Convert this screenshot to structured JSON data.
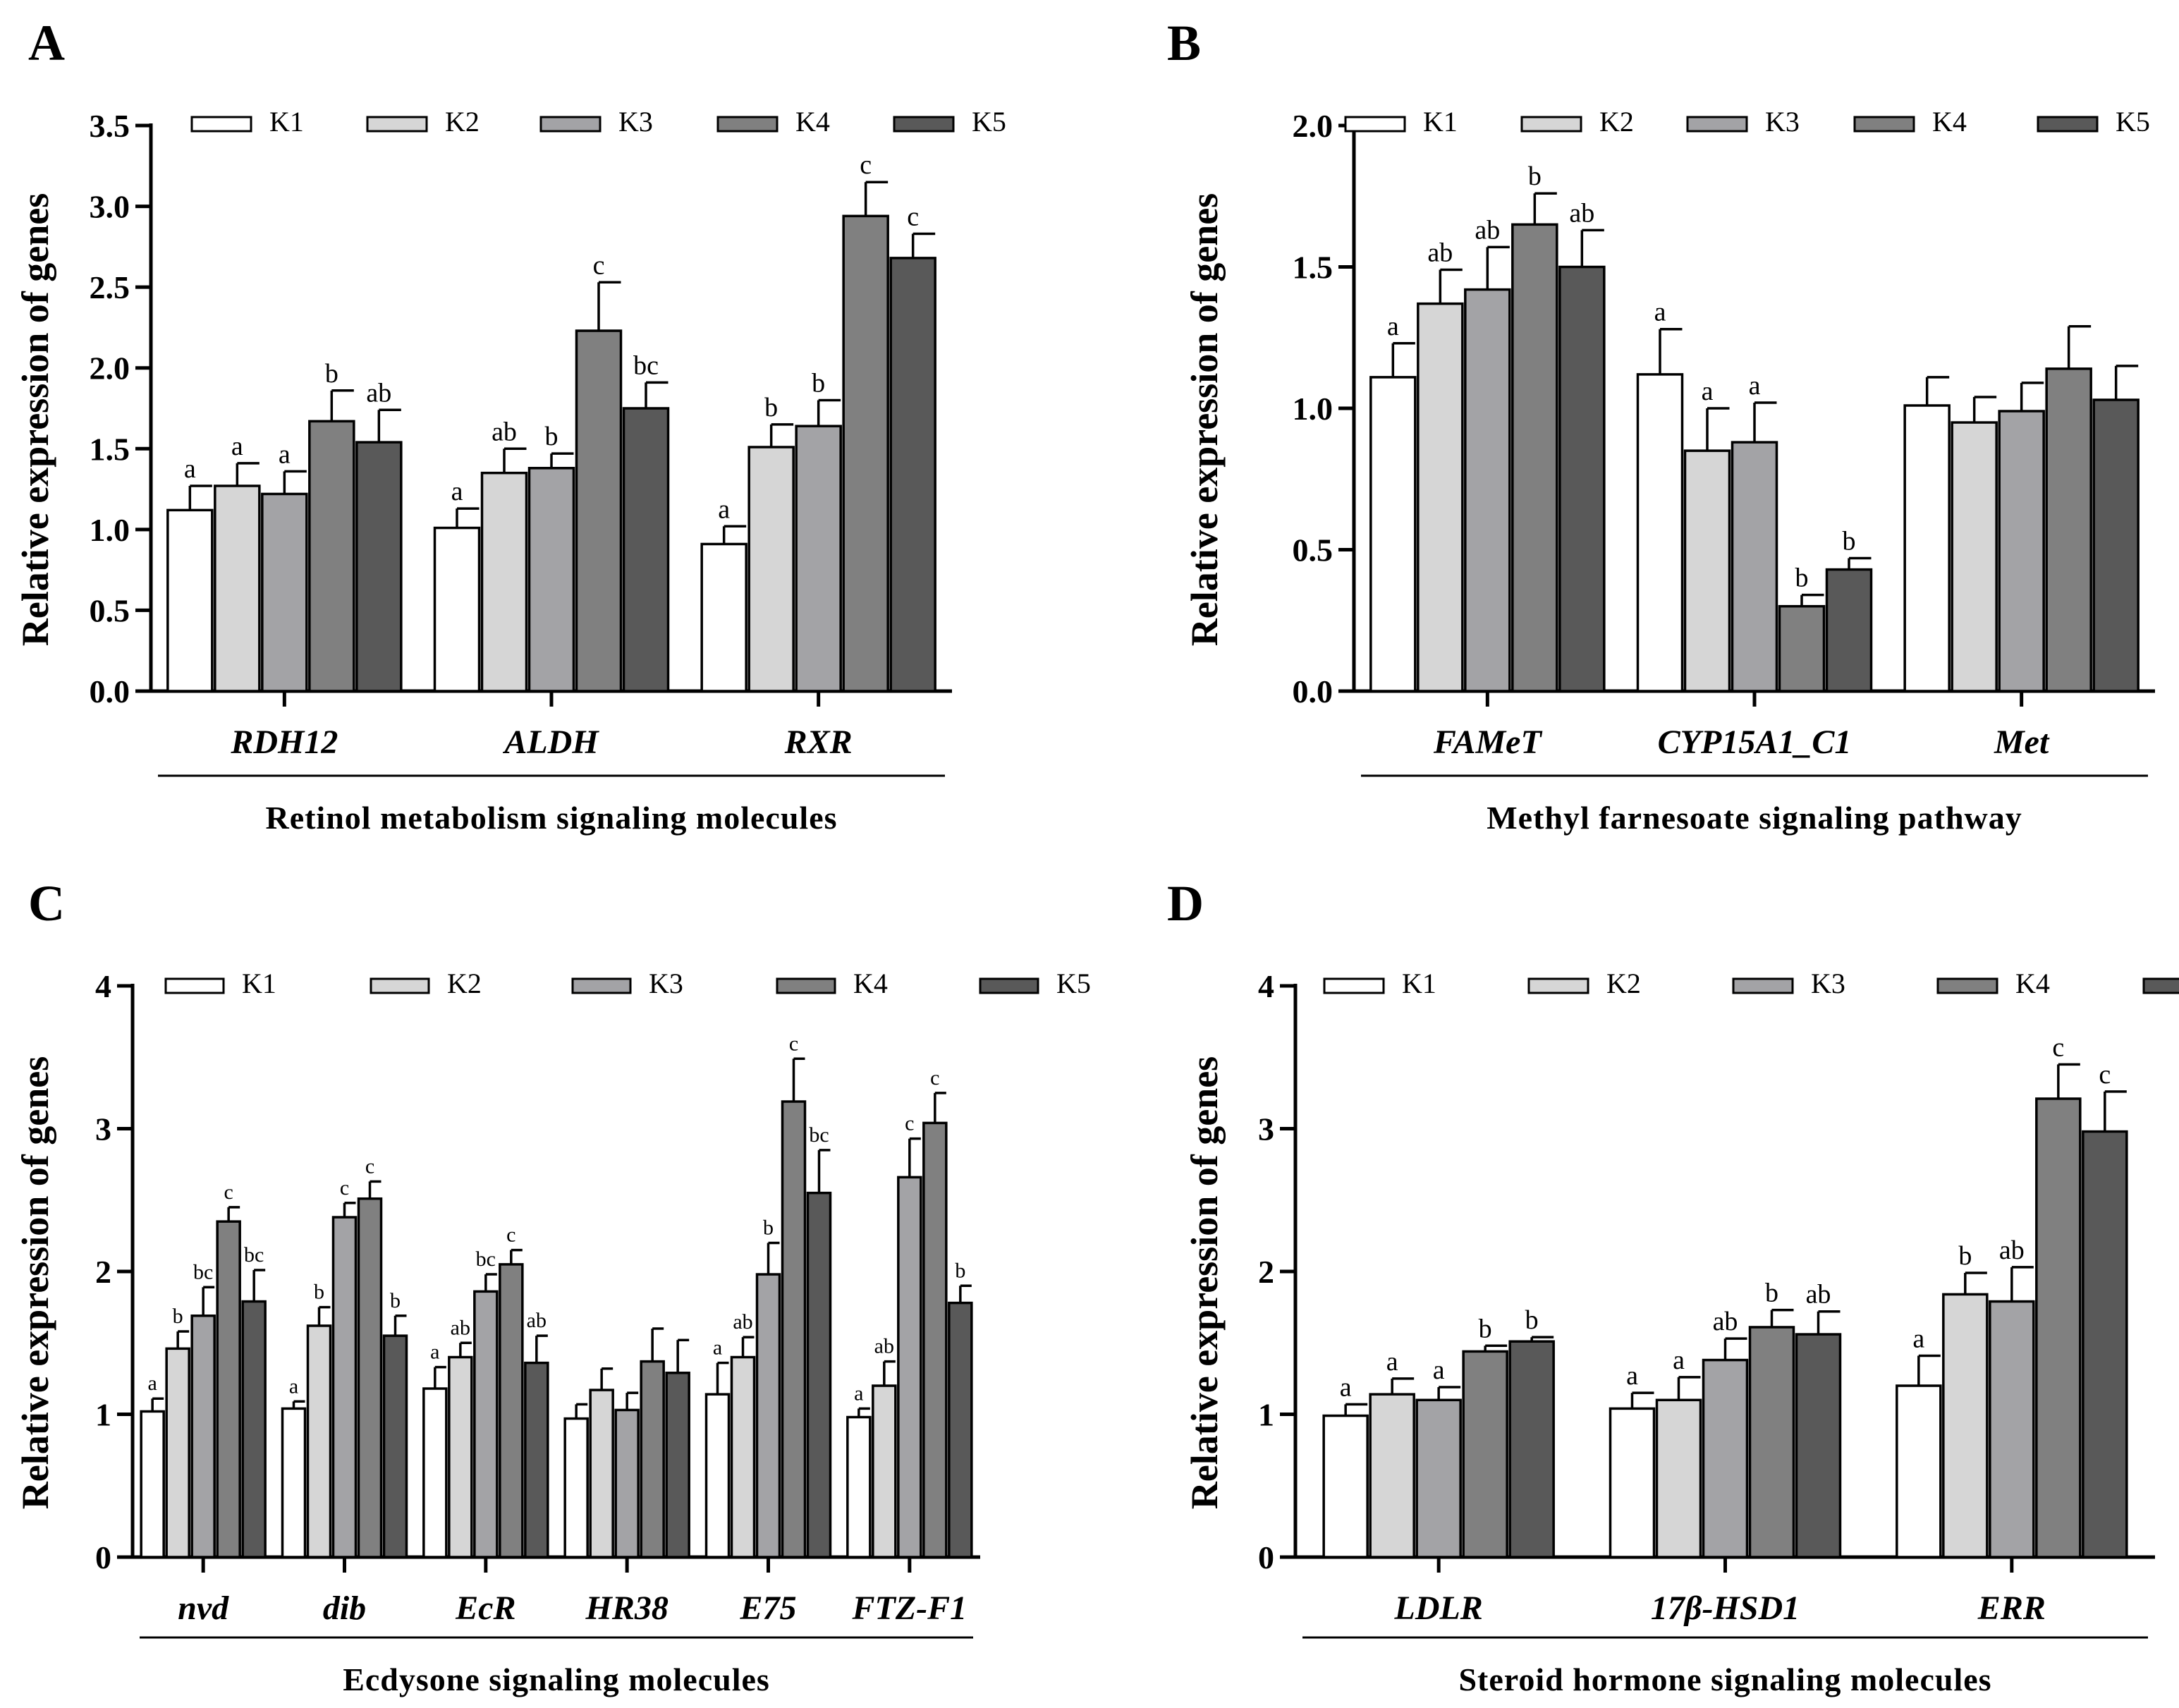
{
  "figure": {
    "legend_labels": [
      "K1",
      "K2",
      "K3",
      "K4",
      "K5"
    ],
    "series_colors": [
      "#ffffff",
      "#d6d6d6",
      "#a3a3a6",
      "#808080",
      "#595959"
    ],
    "y_title": "Relative expression of genes"
  },
  "chart_data": [
    {
      "panel": "A",
      "type": "bar",
      "title": "",
      "ylabel": "Relative expression of genes",
      "xlabel": "Retinol metabolism signaling molecules",
      "ylim": [
        0,
        3.5
      ],
      "yticks": [
        0.0,
        0.5,
        1.0,
        1.5,
        2.0,
        2.5,
        3.0,
        3.5
      ],
      "ytick_labels": [
        "0.0",
        "0.5",
        "1.0",
        "1.5",
        "2.0",
        "2.5",
        "3.0",
        "3.5"
      ],
      "legend": "top",
      "categories": [
        "RDH12",
        "ALDH",
        "RXR"
      ],
      "series": [
        {
          "name": "K1",
          "values": [
            1.12,
            1.01,
            0.91
          ],
          "errors": [
            0.15,
            0.12,
            0.11
          ],
          "labels": [
            "a",
            "a",
            "a"
          ]
        },
        {
          "name": "K2",
          "values": [
            1.27,
            1.35,
            1.51
          ],
          "errors": [
            0.14,
            0.15,
            0.14
          ],
          "labels": [
            "a",
            "ab",
            "b"
          ]
        },
        {
          "name": "K3",
          "values": [
            1.22,
            1.38,
            1.64
          ],
          "errors": [
            0.14,
            0.09,
            0.16
          ],
          "labels": [
            "a",
            "b",
            "b"
          ]
        },
        {
          "name": "K4",
          "values": [
            1.67,
            2.23,
            2.94
          ],
          "errors": [
            0.19,
            0.3,
            0.21
          ],
          "labels": [
            "b",
            "c",
            "c"
          ]
        },
        {
          "name": "K5",
          "values": [
            1.54,
            1.75,
            2.68
          ],
          "errors": [
            0.2,
            0.16,
            0.15
          ],
          "labels": [
            "ab",
            "bc",
            "c"
          ]
        }
      ]
    },
    {
      "panel": "B",
      "type": "bar",
      "title": "",
      "ylabel": "Relative expression of genes",
      "xlabel": "Methyl farnesoate signaling pathway",
      "ylim": [
        0,
        2.0
      ],
      "yticks": [
        0.0,
        0.5,
        1.0,
        1.5,
        2.0
      ],
      "ytick_labels": [
        "0.0",
        "0.5",
        "1.0",
        "1.5",
        "2.0"
      ],
      "legend": "top",
      "categories": [
        "FAMeT",
        "CYP15A1_C1",
        "Met"
      ],
      "series": [
        {
          "name": "K1",
          "values": [
            1.11,
            1.12,
            1.01
          ],
          "errors": [
            0.12,
            0.16,
            0.1
          ],
          "labels": [
            "a",
            "a",
            ""
          ]
        },
        {
          "name": "K2",
          "values": [
            1.37,
            0.85,
            0.95
          ],
          "errors": [
            0.12,
            0.15,
            0.09
          ],
          "labels": [
            "ab",
            "a",
            ""
          ]
        },
        {
          "name": "K3",
          "values": [
            1.42,
            0.88,
            0.99
          ],
          "errors": [
            0.15,
            0.14,
            0.1
          ],
          "labels": [
            "ab",
            "a",
            ""
          ]
        },
        {
          "name": "K4",
          "values": [
            1.65,
            0.3,
            1.14
          ],
          "errors": [
            0.11,
            0.04,
            0.15
          ],
          "labels": [
            "b",
            "b",
            ""
          ]
        },
        {
          "name": "K5",
          "values": [
            1.5,
            0.43,
            1.03
          ],
          "errors": [
            0.13,
            0.04,
            0.12
          ],
          "labels": [
            "ab",
            "b",
            ""
          ]
        }
      ]
    },
    {
      "panel": "C",
      "type": "bar",
      "title": "",
      "ylabel": "Relative expression of genes",
      "xlabel": "Ecdysone signaling molecules",
      "ylim": [
        0,
        4
      ],
      "yticks": [
        0,
        1,
        2,
        3,
        4
      ],
      "ytick_labels": [
        "0",
        "1",
        "2",
        "3",
        "4"
      ],
      "legend": "top",
      "categories": [
        "nvd",
        "dib",
        "EcR",
        "HR38",
        "E75",
        "FTZ-F1"
      ],
      "series": [
        {
          "name": "K1",
          "values": [
            1.02,
            1.04,
            1.18,
            0.97,
            1.14,
            0.98
          ],
          "errors": [
            0.09,
            0.05,
            0.15,
            0.1,
            0.22,
            0.06
          ],
          "labels": [
            "a",
            "a",
            "a",
            "",
            "a",
            "a"
          ]
        },
        {
          "name": "K2",
          "values": [
            1.46,
            1.62,
            1.4,
            1.17,
            1.4,
            1.2
          ],
          "errors": [
            0.12,
            0.13,
            0.1,
            0.15,
            0.14,
            0.17
          ],
          "labels": [
            "b",
            "b",
            "ab",
            "",
            "ab",
            "ab"
          ]
        },
        {
          "name": "K3",
          "values": [
            1.69,
            2.38,
            1.86,
            1.03,
            1.98,
            2.66
          ],
          "errors": [
            0.2,
            0.1,
            0.12,
            0.12,
            0.22,
            0.27
          ],
          "labels": [
            "bc",
            "c",
            "bc",
            "",
            "b",
            "c"
          ]
        },
        {
          "name": "K4",
          "values": [
            2.35,
            2.51,
            2.05,
            1.37,
            3.19,
            3.04
          ],
          "errors": [
            0.1,
            0.12,
            0.1,
            0.23,
            0.3,
            0.21
          ],
          "labels": [
            "c",
            "c",
            "c",
            "",
            "c",
            "c"
          ]
        },
        {
          "name": "K5",
          "values": [
            1.79,
            1.55,
            1.36,
            1.29,
            2.55,
            1.78
          ],
          "errors": [
            0.22,
            0.14,
            0.19,
            0.23,
            0.3,
            0.12
          ],
          "labels": [
            "bc",
            "b",
            "ab",
            "",
            "bc",
            "b"
          ]
        }
      ]
    },
    {
      "panel": "D",
      "type": "bar",
      "title": "",
      "ylabel": "Relative expression of genes",
      "xlabel": "Steroid hormone signaling molecules",
      "ylim": [
        0,
        4
      ],
      "yticks": [
        0,
        1,
        2,
        3,
        4
      ],
      "ytick_labels": [
        "0",
        "1",
        "2",
        "3",
        "4"
      ],
      "legend": "top",
      "categories": [
        "LDLR",
        "17β-HSD1",
        "ERR"
      ],
      "series": [
        {
          "name": "K1",
          "values": [
            0.99,
            1.04,
            1.2
          ],
          "errors": [
            0.08,
            0.11,
            0.21
          ],
          "labels": [
            "a",
            "a",
            "a"
          ]
        },
        {
          "name": "K2",
          "values": [
            1.14,
            1.1,
            1.84
          ],
          "errors": [
            0.11,
            0.16,
            0.15
          ],
          "labels": [
            "a",
            "a",
            "b"
          ]
        },
        {
          "name": "K3",
          "values": [
            1.1,
            1.38,
            1.79
          ],
          "errors": [
            0.09,
            0.15,
            0.24
          ],
          "labels": [
            "a",
            "ab",
            "ab"
          ]
        },
        {
          "name": "K4",
          "values": [
            1.44,
            1.61,
            3.21
          ],
          "errors": [
            0.04,
            0.12,
            0.24
          ],
          "labels": [
            "b",
            "b",
            "c"
          ]
        },
        {
          "name": "K5",
          "values": [
            1.51,
            1.56,
            2.98
          ],
          "errors": [
            0.03,
            0.16,
            0.28
          ],
          "labels": [
            "b",
            "ab",
            "c"
          ]
        }
      ]
    }
  ]
}
